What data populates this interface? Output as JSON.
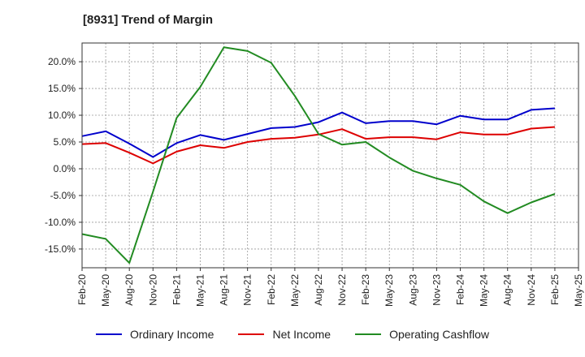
{
  "chart_data": {
    "type": "line",
    "title": "[8931]  Trend of Margin",
    "x": [
      "Feb-20",
      "May-20",
      "Aug-20",
      "Nov-20",
      "Feb-21",
      "May-21",
      "Aug-21",
      "Nov-21",
      "Feb-22",
      "May-22",
      "Aug-22",
      "Nov-22",
      "Feb-23",
      "May-23",
      "Aug-23",
      "Nov-23",
      "Feb-24",
      "May-24",
      "Aug-24",
      "Nov-24",
      "Feb-25",
      "May-25"
    ],
    "y_ticks": [
      "20.0%",
      "15.0%",
      "10.0%",
      "5.0%",
      "0.0%",
      "-5.0%",
      "-10.0%",
      "-15.0%"
    ],
    "y_tick_values": [
      20,
      15,
      10,
      5,
      0,
      -5,
      -10,
      -15
    ],
    "ylim": [
      -18.5,
      23.5
    ],
    "grid": true,
    "legend_position": "bottom",
    "series": [
      {
        "name": "Ordinary Income",
        "color": "#0000cc",
        "values": [
          6.1,
          7.0,
          4.7,
          2.2,
          4.8,
          6.3,
          5.4,
          6.5,
          7.6,
          7.8,
          8.7,
          10.5,
          8.5,
          8.9,
          8.9,
          8.3,
          9.9,
          9.2,
          9.2,
          11.0,
          11.3,
          null
        ]
      },
      {
        "name": "Net Income",
        "color": "#dd0000",
        "values": [
          4.6,
          4.8,
          3.0,
          1.0,
          3.2,
          4.4,
          3.9,
          5.0,
          5.6,
          5.8,
          6.4,
          7.4,
          5.6,
          5.9,
          5.9,
          5.5,
          6.8,
          6.4,
          6.4,
          7.5,
          7.8,
          null
        ]
      },
      {
        "name": "Operating Cashflow",
        "color": "#228b22",
        "values": [
          -12.2,
          -13.1,
          -17.6,
          -4.3,
          9.5,
          15.3,
          22.7,
          22.0,
          19.8,
          13.6,
          6.5,
          4.5,
          5.0,
          2.1,
          -0.4,
          -1.8,
          -3.0,
          -6.1,
          -8.3,
          -6.3,
          -4.7,
          null
        ]
      }
    ]
  }
}
